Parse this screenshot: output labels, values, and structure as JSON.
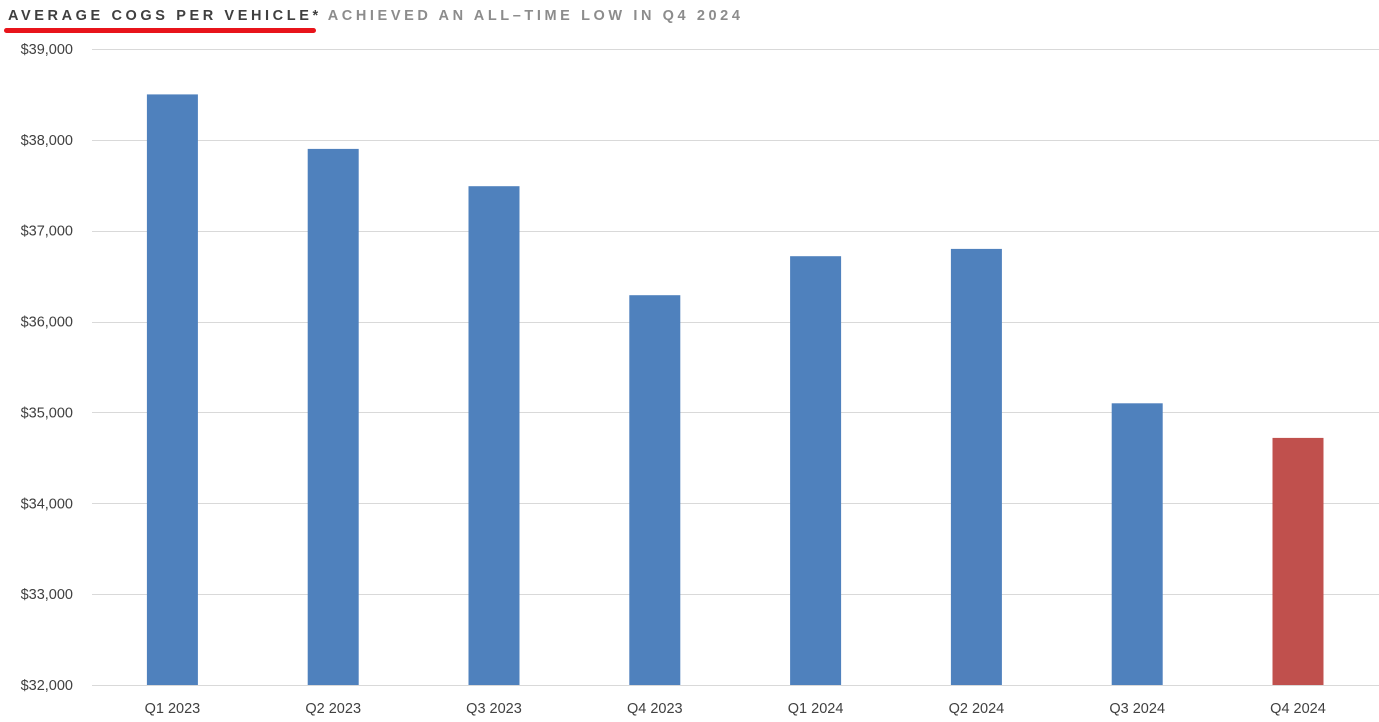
{
  "title": {
    "main": "AVERAGE COGS PER VEHICLE*",
    "sub": "ACHIEVED AN ALL–TIME LOW IN Q4 2024"
  },
  "colors": {
    "bar": "#4f81bd",
    "highlight_bar": "#c0504d",
    "gridline": "#d9d9d9",
    "underline": "#e8141b"
  },
  "chart_data": {
    "type": "bar",
    "categories": [
      "Q1 2023",
      "Q2 2023",
      "Q3 2023",
      "Q4 2023",
      "Q1 2024",
      "Q2 2024",
      "Q3 2024",
      "Q4 2024"
    ],
    "values": [
      38500,
      37900,
      37490,
      36290,
      36720,
      36800,
      35100,
      34720
    ],
    "highlight_index": 7,
    "title": "AVERAGE COGS PER VEHICLE* ACHIEVED AN ALL–TIME LOW IN Q4 2024",
    "xlabel": "",
    "ylabel": "",
    "ylim": [
      32000,
      39000
    ],
    "y_ticks": [
      32000,
      33000,
      34000,
      35000,
      36000,
      37000,
      38000,
      39000
    ],
    "y_tick_labels": [
      "$32,000",
      "$33,000",
      "$34,000",
      "$35,000",
      "$36,000",
      "$37,000",
      "$38,000",
      "$39,000"
    ],
    "grid": true,
    "legend": "none"
  }
}
